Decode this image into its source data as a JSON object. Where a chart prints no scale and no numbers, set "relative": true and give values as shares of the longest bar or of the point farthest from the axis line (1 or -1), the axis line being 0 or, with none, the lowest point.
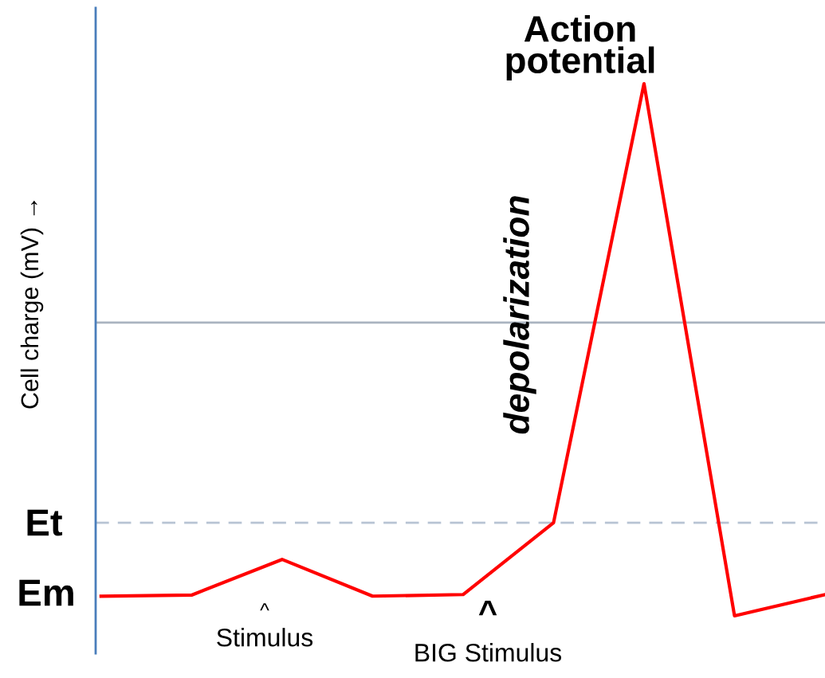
{
  "chart_data": {
    "type": "line",
    "relative": true,
    "ylabel": "Cell charge (mV) →",
    "categories": [
      null,
      null,
      null,
      null,
      null,
      null,
      null,
      null,
      null
    ],
    "series": [
      {
        "color": "#ff0000",
        "values": [
          0.037,
          0.039,
          0.106,
          0.037,
          0.04,
          0.175,
          1,
          0,
          0.04
        ]
      }
    ],
    "ref_lines": [
      {
        "axis": "y",
        "value": 0.175,
        "color": "#b8c4d4",
        "line_style": "dashed"
      },
      {
        "axis": "y",
        "value": 0.551,
        "color": "#aab4c0",
        "line_style": "solid"
      }
    ],
    "annotations": [
      "Em",
      "Et",
      "^",
      "Stimulus",
      "^",
      "BIG Stimulus",
      "depolarization",
      "Action\npotential"
    ],
    "grid": false,
    "legend": false,
    "marker": "none",
    "line_style": "solid"
  }
}
